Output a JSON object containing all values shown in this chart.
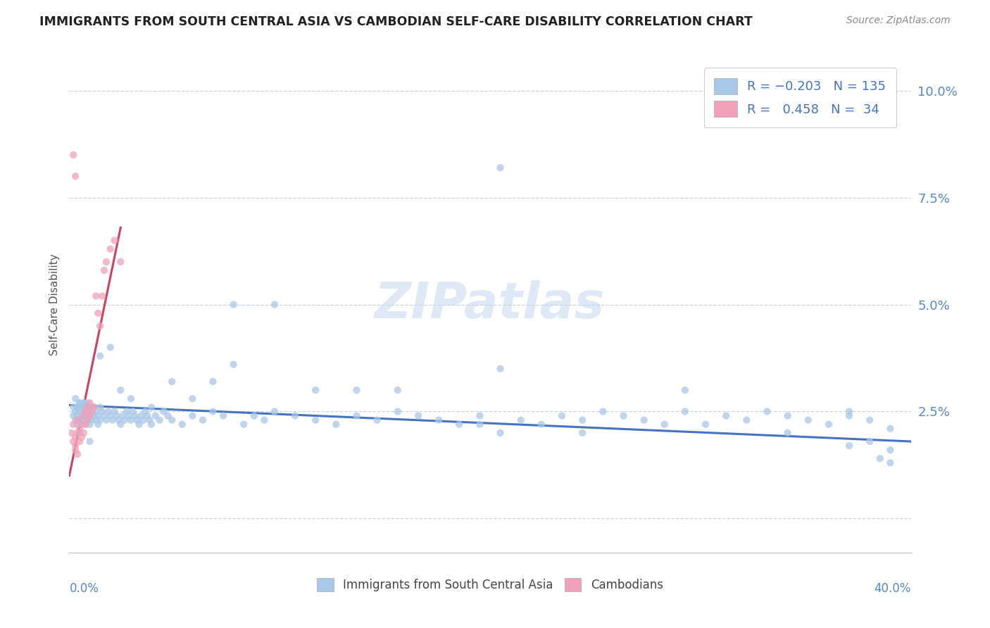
{
  "title": "IMMIGRANTS FROM SOUTH CENTRAL ASIA VS CAMBODIAN SELF-CARE DISABILITY CORRELATION CHART",
  "source": "Source: ZipAtlas.com",
  "ylabel": "Self-Care Disability",
  "xlim": [
    0.0,
    0.41
  ],
  "ylim": [
    -0.008,
    0.108
  ],
  "watermark": "ZIPatlas",
  "blue_color": "#A8C8E8",
  "pink_color": "#F0A0B8",
  "blue_line_color": "#4472C4",
  "pink_line_color": "#D04060",
  "background_color": "#FFFFFF",
  "grid_color": "#C8D4E0",
  "title_color": "#222222",
  "source_color": "#888888",
  "ylabel_color": "#555555",
  "tick_color": "#5588CC",
  "scatter_size": 55,
  "scatter_alpha": 0.75,
  "blue_x": [
    0.002,
    0.002,
    0.003,
    0.003,
    0.004,
    0.004,
    0.004,
    0.005,
    0.005,
    0.005,
    0.006,
    0.006,
    0.006,
    0.007,
    0.007,
    0.007,
    0.008,
    0.008,
    0.008,
    0.009,
    0.009,
    0.01,
    0.01,
    0.01,
    0.011,
    0.011,
    0.012,
    0.012,
    0.013,
    0.013,
    0.014,
    0.014,
    0.015,
    0.015,
    0.016,
    0.017,
    0.018,
    0.019,
    0.02,
    0.021,
    0.022,
    0.023,
    0.024,
    0.025,
    0.026,
    0.027,
    0.028,
    0.029,
    0.03,
    0.031,
    0.032,
    0.033,
    0.034,
    0.035,
    0.036,
    0.037,
    0.038,
    0.039,
    0.04,
    0.042,
    0.044,
    0.046,
    0.048,
    0.05,
    0.055,
    0.06,
    0.065,
    0.07,
    0.075,
    0.08,
    0.085,
    0.09,
    0.095,
    0.1,
    0.11,
    0.12,
    0.13,
    0.14,
    0.15,
    0.16,
    0.17,
    0.18,
    0.19,
    0.2,
    0.21,
    0.22,
    0.23,
    0.24,
    0.25,
    0.26,
    0.27,
    0.28,
    0.29,
    0.3,
    0.31,
    0.32,
    0.33,
    0.34,
    0.35,
    0.36,
    0.37,
    0.38,
    0.39,
    0.4,
    0.003,
    0.004,
    0.005,
    0.006,
    0.007,
    0.008,
    0.009,
    0.01,
    0.015,
    0.02,
    0.025,
    0.03,
    0.04,
    0.05,
    0.06,
    0.07,
    0.08,
    0.1,
    0.12,
    0.14,
    0.16,
    0.2,
    0.21,
    0.25,
    0.3,
    0.35,
    0.38,
    0.395,
    0.005,
    0.01,
    0.21,
    0.38,
    0.39,
    0.4,
    0.4
  ],
  "blue_y": [
    0.026,
    0.024,
    0.025,
    0.023,
    0.024,
    0.026,
    0.022,
    0.025,
    0.023,
    0.027,
    0.024,
    0.026,
    0.022,
    0.025,
    0.023,
    0.027,
    0.024,
    0.026,
    0.022,
    0.025,
    0.023,
    0.024,
    0.026,
    0.022,
    0.025,
    0.023,
    0.024,
    0.026,
    0.025,
    0.023,
    0.024,
    0.022,
    0.026,
    0.023,
    0.025,
    0.024,
    0.023,
    0.025,
    0.024,
    0.023,
    0.025,
    0.024,
    0.023,
    0.022,
    0.024,
    0.023,
    0.025,
    0.024,
    0.023,
    0.025,
    0.024,
    0.023,
    0.022,
    0.024,
    0.023,
    0.025,
    0.024,
    0.023,
    0.022,
    0.024,
    0.023,
    0.025,
    0.024,
    0.023,
    0.022,
    0.024,
    0.023,
    0.025,
    0.024,
    0.036,
    0.022,
    0.024,
    0.023,
    0.025,
    0.024,
    0.023,
    0.022,
    0.024,
    0.023,
    0.025,
    0.024,
    0.023,
    0.022,
    0.024,
    0.082,
    0.023,
    0.022,
    0.024,
    0.023,
    0.025,
    0.024,
    0.023,
    0.022,
    0.03,
    0.022,
    0.024,
    0.023,
    0.025,
    0.024,
    0.023,
    0.022,
    0.024,
    0.023,
    0.021,
    0.028,
    0.026,
    0.027,
    0.026,
    0.027,
    0.026,
    0.027,
    0.026,
    0.038,
    0.04,
    0.03,
    0.028,
    0.026,
    0.032,
    0.028,
    0.032,
    0.05,
    0.05,
    0.03,
    0.03,
    0.03,
    0.022,
    0.035,
    0.02,
    0.025,
    0.02,
    0.025,
    0.014,
    0.02,
    0.018,
    0.02,
    0.017,
    0.018,
    0.013,
    0.016
  ],
  "pink_x": [
    0.001,
    0.002,
    0.002,
    0.003,
    0.003,
    0.004,
    0.004,
    0.005,
    0.005,
    0.006,
    0.006,
    0.007,
    0.007,
    0.008,
    0.008,
    0.009,
    0.009,
    0.01,
    0.01,
    0.011,
    0.012,
    0.013,
    0.014,
    0.015,
    0.016,
    0.017,
    0.018,
    0.02,
    0.022,
    0.025,
    0.002,
    0.003,
    0.003,
    0.004
  ],
  "pink_y": [
    0.02,
    0.018,
    0.022,
    0.017,
    0.019,
    0.02,
    0.023,
    0.018,
    0.021,
    0.019,
    0.022,
    0.02,
    0.024,
    0.022,
    0.025,
    0.023,
    0.026,
    0.024,
    0.027,
    0.025,
    0.026,
    0.052,
    0.048,
    0.045,
    0.052,
    0.058,
    0.06,
    0.063,
    0.065,
    0.06,
    0.085,
    0.08,
    0.016,
    0.015
  ],
  "pink_line_x0": 0.0,
  "pink_line_x1": 0.025,
  "pink_line_y0": 0.01,
  "pink_line_y1": 0.068,
  "blue_line_x0": 0.0,
  "blue_line_x1": 0.41,
  "blue_line_y0": 0.0265,
  "blue_line_y1": 0.018
}
